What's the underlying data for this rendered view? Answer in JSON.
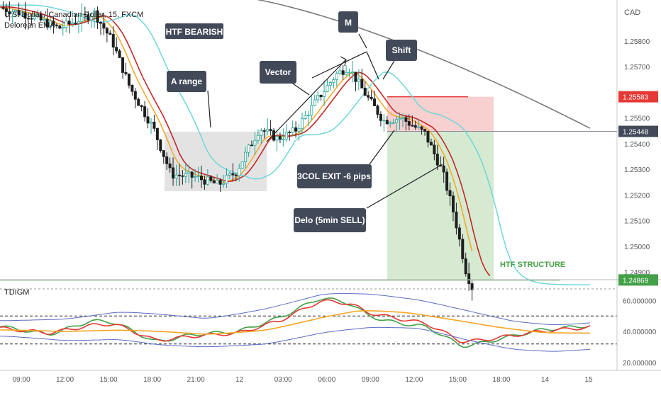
{
  "header": {
    "symbol_line": "U.S. Dollar / Canadian Dollar, 15, FXCM",
    "indicator_line": "Delorean EMA",
    "currency": "CAD"
  },
  "oscillator": {
    "name": "TDIGM"
  },
  "annotations": {
    "htf_bearish": "HTF BEARISH",
    "m": "M",
    "shift": "Shift",
    "vector": "Vector",
    "a_range": "A range",
    "exit": "3COL EXIT -6 pips",
    "delo": "Delo (5min SELL)",
    "htf_structure": "HTF STRUCTURE"
  },
  "price_axis": {
    "ticks": [
      "1.25800",
      "1.25700",
      "1.25500",
      "1.25400",
      "1.25300",
      "1.25200",
      "1.25100",
      "1.25000",
      "1.24900"
    ],
    "tick_values": [
      1.258,
      1.257,
      1.255,
      1.254,
      1.253,
      1.252,
      1.251,
      1.25,
      1.249
    ],
    "tags": [
      {
        "label": "1.25583",
        "value": 1.25583,
        "color": "#e53935"
      },
      {
        "label": "1.25448",
        "value": 1.25448,
        "color": "#424a5a"
      },
      {
        "label": "1.24869",
        "value": 1.24869,
        "color": "#43a047"
      }
    ]
  },
  "osc_axis": {
    "ticks": [
      "60.000000",
      "40.000000",
      "20.000000"
    ],
    "tick_values": [
      60,
      40,
      20
    ]
  },
  "time_axis": {
    "labels": [
      "09:00",
      "12:00",
      "15:00",
      "18:00",
      "21:00",
      "12",
      "03:00",
      "06:00",
      "09:00",
      "12:00",
      "15:00",
      "18:00",
      "14",
      "15"
    ]
  },
  "colors": {
    "up": "#26a69a",
    "down": "#1e1e1e",
    "ema_fast": "#f5a623",
    "ema_mid": "#c62828",
    "ema_cyan": "#70d6dc",
    "ema_slow": "#7a7a7a",
    "structure": "#43a047",
    "stop_zone": "#f8d0d0",
    "target_zone": "#d5ead1",
    "range_box": "#e3e3e3"
  },
  "chart_data": [
    {
      "type": "candlestick",
      "title": "U.S. Dollar / Canadian Dollar, 15, FXCM",
      "ylim": [
        1.2487,
        1.2596
      ],
      "levels": {
        "stop": 1.25583,
        "entry": 1.25448,
        "target": 1.24869
      },
      "close_path": [
        [
          0,
          1.2593
        ],
        [
          0.05,
          1.259
        ],
        [
          0.1,
          1.2585
        ],
        [
          0.16,
          1.2591
        ],
        [
          0.19,
          1.258
        ],
        [
          0.22,
          1.2562
        ],
        [
          0.26,
          1.2546
        ],
        [
          0.29,
          1.2528
        ],
        [
          0.33,
          1.2527
        ],
        [
          0.37,
          1.2524
        ],
        [
          0.4,
          1.2529
        ],
        [
          0.44,
          1.2546
        ],
        [
          0.47,
          1.2542
        ],
        [
          0.5,
          1.2545
        ],
        [
          0.54,
          1.2558
        ],
        [
          0.57,
          1.2567
        ],
        [
          0.59,
          1.257
        ],
        [
          0.62,
          1.2559
        ],
        [
          0.65,
          1.2549
        ],
        [
          0.68,
          1.255
        ],
        [
          0.72,
          1.2544
        ],
        [
          0.75,
          1.2529
        ],
        [
          0.77,
          1.2512
        ],
        [
          0.79,
          1.249
        ],
        [
          0.8,
          1.2484
        ]
      ]
    },
    {
      "type": "line",
      "title": "TDIGM",
      "ylim": [
        15,
        72
      ],
      "reference_lines": [
        50,
        32
      ],
      "series": [
        {
          "color": "#43a047",
          "values": [
            [
              0,
              43
            ],
            [
              0.08,
              38
            ],
            [
              0.15,
              47
            ],
            [
              0.19,
              46
            ],
            [
              0.26,
              33
            ],
            [
              0.32,
              38
            ],
            [
              0.4,
              40
            ],
            [
              0.47,
              49
            ],
            [
              0.54,
              62
            ],
            [
              0.59,
              58
            ],
            [
              0.62,
              50
            ],
            [
              0.66,
              46
            ],
            [
              0.72,
              43
            ],
            [
              0.78,
              30
            ],
            [
              0.84,
              35
            ],
            [
              0.91,
              41
            ],
            [
              1,
              44
            ]
          ]
        },
        {
          "color": "#e53935",
          "values": [
            [
              0,
              42
            ],
            [
              0.08,
              39
            ],
            [
              0.15,
              44
            ],
            [
              0.19,
              45
            ],
            [
              0.26,
              34
            ],
            [
              0.32,
              37
            ],
            [
              0.4,
              39
            ],
            [
              0.47,
              47
            ],
            [
              0.54,
              60
            ],
            [
              0.59,
              58
            ],
            [
              0.62,
              52
            ],
            [
              0.66,
              49
            ],
            [
              0.72,
              45
            ],
            [
              0.78,
              33
            ],
            [
              0.84,
              36
            ],
            [
              0.91,
              40
            ],
            [
              1,
              43
            ]
          ]
        },
        {
          "color": "#f5a623",
          "values": [
            [
              0,
              41
            ],
            [
              0.1,
              40
            ],
            [
              0.19,
              41
            ],
            [
              0.26,
              40
            ],
            [
              0.34,
              38
            ],
            [
              0.44,
              41
            ],
            [
              0.54,
              50
            ],
            [
              0.6,
              54
            ],
            [
              0.68,
              52
            ],
            [
              0.76,
              47
            ],
            [
              0.84,
              42
            ],
            [
              0.91,
              39
            ],
            [
              1,
              39
            ]
          ]
        },
        {
          "color": "#5c6bc0",
          "values": [
            [
              0,
              47
            ],
            [
              0.1,
              48
            ],
            [
              0.19,
              53
            ],
            [
              0.26,
              51
            ],
            [
              0.34,
              48
            ],
            [
              0.44,
              55
            ],
            [
              0.54,
              65
            ],
            [
              0.62,
              64
            ],
            [
              0.7,
              60
            ],
            [
              0.78,
              53
            ],
            [
              0.86,
              46
            ],
            [
              0.93,
              44
            ],
            [
              1,
              46
            ]
          ]
        },
        {
          "color": "#5c6bc0",
          "values": [
            [
              0,
              37
            ],
            [
              0.1,
              34
            ],
            [
              0.19,
              35
            ],
            [
              0.26,
              31
            ],
            [
              0.34,
              30
            ],
            [
              0.44,
              32
            ],
            [
              0.54,
              40
            ],
            [
              0.62,
              43
            ],
            [
              0.7,
              42
            ],
            [
              0.78,
              34
            ],
            [
              0.86,
              28
            ],
            [
              0.93,
              27
            ],
            [
              1,
              29
            ]
          ]
        }
      ]
    }
  ]
}
